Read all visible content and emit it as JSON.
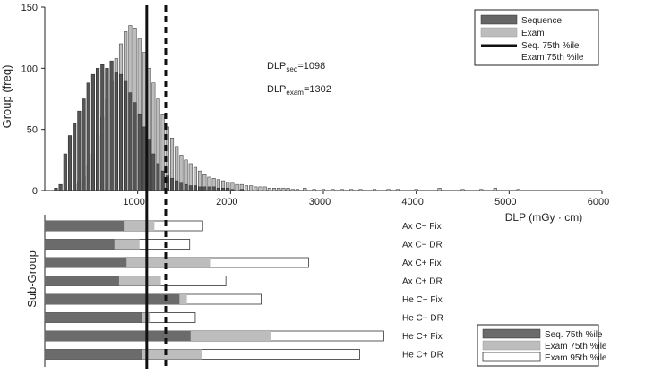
{
  "chart_data": {
    "type": "bar",
    "top_panel": {
      "type": "histogram",
      "ylabel": "Group (freq)",
      "xlabel": "DLP (mGy · cm)",
      "xlim": [
        0,
        6000
      ],
      "ylim": [
        0,
        150
      ],
      "xticks": [
        1000,
        2000,
        3000,
        4000,
        5000,
        6000
      ],
      "yticks": [
        0,
        50,
        100,
        150
      ],
      "series": [
        {
          "name": "Sequence",
          "color": "#555555",
          "bins": [
            [
              120,
              2
            ],
            [
              170,
              5
            ],
            [
              220,
              30
            ],
            [
              270,
              45
            ],
            [
              320,
              55
            ],
            [
              370,
              65
            ],
            [
              420,
              75
            ],
            [
              470,
              88
            ],
            [
              520,
              95
            ],
            [
              570,
              100
            ],
            [
              620,
              103
            ],
            [
              670,
              100
            ],
            [
              720,
              106
            ],
            [
              770,
              97
            ],
            [
              820,
              95
            ],
            [
              870,
              90
            ],
            [
              920,
              80
            ],
            [
              970,
              72
            ],
            [
              1020,
              62
            ],
            [
              1070,
              52
            ],
            [
              1120,
              42
            ],
            [
              1170,
              30
            ],
            [
              1220,
              22
            ],
            [
              1270,
              16
            ],
            [
              1320,
              12
            ],
            [
              1370,
              10
            ],
            [
              1420,
              8
            ],
            [
              1470,
              6
            ],
            [
              1520,
              5
            ],
            [
              1570,
              4
            ],
            [
              1620,
              4
            ],
            [
              1670,
              3
            ],
            [
              1720,
              3
            ],
            [
              1770,
              3
            ],
            [
              1820,
              3
            ],
            [
              1870,
              2
            ],
            [
              1920,
              2
            ],
            [
              1970,
              2
            ],
            [
              2020,
              1
            ],
            [
              2120,
              1
            ]
          ]
        },
        {
          "name": "Exam",
          "color": "#bdbdbd",
          "bins": [
            [
              320,
              5
            ],
            [
              370,
              8
            ],
            [
              420,
              12
            ],
            [
              470,
              20
            ],
            [
              520,
              30
            ],
            [
              570,
              45
            ],
            [
              620,
              60
            ],
            [
              670,
              75
            ],
            [
              720,
              90
            ],
            [
              770,
              108
            ],
            [
              820,
              120
            ],
            [
              870,
              130
            ],
            [
              920,
              135
            ],
            [
              970,
              133
            ],
            [
              1020,
              124
            ],
            [
              1070,
              113
            ],
            [
              1120,
              100
            ],
            [
              1170,
              88
            ],
            [
              1220,
              75
            ],
            [
              1270,
              62
            ],
            [
              1320,
              52
            ],
            [
              1370,
              43
            ],
            [
              1420,
              36
            ],
            [
              1470,
              29
            ],
            [
              1520,
              25
            ],
            [
              1570,
              22
            ],
            [
              1620,
              19
            ],
            [
              1670,
              16
            ],
            [
              1720,
              13
            ],
            [
              1770,
              11
            ],
            [
              1820,
              10
            ],
            [
              1870,
              9
            ],
            [
              1920,
              8
            ],
            [
              1970,
              7
            ],
            [
              2020,
              6
            ],
            [
              2070,
              5
            ],
            [
              2120,
              5
            ],
            [
              2170,
              4
            ],
            [
              2220,
              4
            ],
            [
              2270,
              3
            ],
            [
              2320,
              3
            ],
            [
              2370,
              3
            ],
            [
              2420,
              2
            ],
            [
              2470,
              2
            ],
            [
              2520,
              2
            ],
            [
              2570,
              2
            ],
            [
              2620,
              2
            ],
            [
              2670,
              1
            ],
            [
              2720,
              1
            ],
            [
              2800,
              2
            ],
            [
              2900,
              1
            ],
            [
              3000,
              1
            ],
            [
              3100,
              1
            ],
            [
              3200,
              1
            ],
            [
              3300,
              1
            ],
            [
              3400,
              1
            ],
            [
              3550,
              1
            ],
            [
              3700,
              1
            ],
            [
              3800,
              1
            ],
            [
              4000,
              1
            ],
            [
              4250,
              2
            ],
            [
              4500,
              1
            ],
            [
              4700,
              1
            ],
            [
              4850,
              2
            ],
            [
              5100,
              1
            ]
          ]
        }
      ],
      "reference_lines": [
        {
          "name": "Seq. 75th %ile",
          "x": 1098,
          "style": "solid"
        },
        {
          "name": "Exam 75th %ile",
          "x": 1302,
          "style": "dashed"
        }
      ],
      "annotations": [
        {
          "base": "DLP",
          "sub": "seq",
          "tail": "=1098"
        },
        {
          "base": "DLP",
          "sub": "exam",
          "tail": "=1302"
        }
      ],
      "legend": {
        "position": "top-right",
        "items": [
          {
            "label": "Sequence",
            "swatch": "#666666",
            "kind": "box"
          },
          {
            "label": "Exam",
            "swatch": "#bdbdbd",
            "kind": "box"
          },
          {
            "label": "Seq. 75th %ile",
            "swatch": "#111111",
            "kind": "line"
          },
          {
            "label": "Exam 75th %ile",
            "swatch": "none",
            "kind": "blank"
          }
        ]
      }
    },
    "bottom_panel": {
      "type": "stacked-horizontal-bar",
      "ylabel": "Sub-Group",
      "categories": [
        "Ax C− Fix",
        "Ax C− DR",
        "Ax C+ Fix",
        "Ax C+ DR",
        "He C− Fix",
        "He C− DR",
        "He C+ Fix",
        "He C+ DR"
      ],
      "series": [
        {
          "name": "Seq. 75th %ile",
          "color": "#6b6b6b",
          "values": [
            850,
            750,
            880,
            800,
            1450,
            1050,
            1570,
            1050
          ]
        },
        {
          "name": "Exam 75th %ile",
          "color": "#bdbdbd",
          "values": [
            1180,
            1020,
            1780,
            1250,
            1530,
            1130,
            2430,
            1690
          ]
        },
        {
          "name": "Exam 95th %ile",
          "color": "#ffffff",
          "values": [
            1700,
            1560,
            2840,
            1950,
            2330,
            1620,
            3650,
            3390
          ]
        }
      ],
      "legend": {
        "position": "bottom-right",
        "items": [
          {
            "label": "Seq. 75th %ile",
            "swatch": "#6b6b6b"
          },
          {
            "label": "Exam 75th %ile",
            "swatch": "#bdbdbd"
          },
          {
            "label": "Exam 95th %ile",
            "swatch": "#ffffff"
          }
        ]
      }
    }
  }
}
